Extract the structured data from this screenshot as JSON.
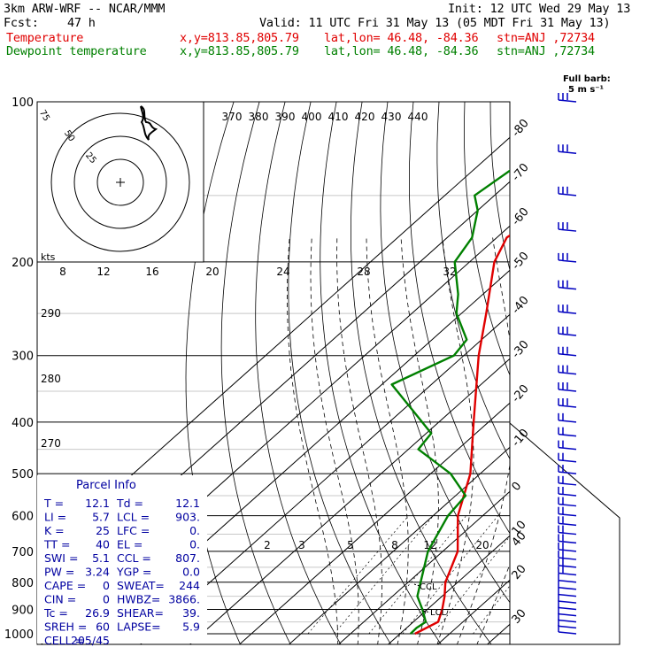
{
  "header": {
    "model": "3km ARW-WRF -- NCAR/MMM",
    "init": "Init: 12 UTC Wed 29 May 13",
    "fcst_label": "Fcst:",
    "fcst_value": "47 h",
    "valid": "Valid: 11 UTC Fri 31 May 13 (05 MDT Fri 31 May 13)",
    "temp_label": "Temperature",
    "dew_label": "Dewpoint temperature",
    "xy": "x,y=813.85,805.79",
    "latlon": "lat,lon= 46.48, -84.36",
    "stn": "stn=ANJ ,72734"
  },
  "colors": {
    "temperature": "#e00000",
    "dewpoint": "#008000",
    "wind": "#0000c0",
    "isotherm": "#000000"
  },
  "parcel": {
    "title": "Parcel Info",
    "rows": [
      [
        "T  =",
        "12.1",
        "Td =",
        "12.1"
      ],
      [
        "LI =",
        "5.7",
        "LCL =",
        "903."
      ],
      [
        "K  =",
        "25",
        "LFC =",
        "0."
      ],
      [
        "TT =",
        "40",
        "EL =",
        "0."
      ],
      [
        "SWI =",
        "5.1",
        "CCL =",
        "807."
      ],
      [
        "PW =",
        "3.24",
        "YGP =",
        "0.0"
      ],
      [
        "CAPE =",
        "0",
        "SWEAT=",
        "244"
      ],
      [
        "CIN =",
        "0",
        "HWBZ=",
        "3866."
      ],
      [
        "Tc =",
        "26.9",
        "SHEAR=",
        "39."
      ],
      [
        "SREH =",
        "60",
        "LAPSE=",
        "5.9"
      ],
      [
        "CELL =",
        "205/45",
        "",
        ""
      ]
    ]
  },
  "barb_label": {
    "line1": "Full barb:",
    "line2": "5 m s⁻¹"
  },
  "hodograph_label": "kts",
  "hodograph_rings": [
    "75",
    "50",
    "25"
  ],
  "level_markers": [
    "CCL",
    "LCL"
  ],
  "chart_data": {
    "type": "skew-t",
    "pressure_ticks": [
      "100",
      "200",
      "300",
      "400",
      "500",
      "600",
      "700",
      "800",
      "900",
      "1000"
    ],
    "isotherm_labels": [
      "-80",
      "-70",
      "-60",
      "-50",
      "-40",
      "-30",
      "-20",
      "-10",
      "0",
      "10",
      "20",
      "30",
      "40"
    ],
    "theta_labels": [
      "370",
      "380",
      "390",
      "400",
      "410",
      "420",
      "430",
      "440"
    ],
    "theta_labels_left": [
      "290",
      "280",
      "270"
    ],
    "mixing_ratio_labels": [
      "2",
      "3",
      "5",
      "8",
      "12",
      "20"
    ],
    "hodo_speed_labels": [
      "8",
      "12",
      "16",
      "20",
      "24",
      "28",
      "32"
    ],
    "series": [
      {
        "name": "Temperature",
        "points": [
          [
            1000,
            13
          ],
          [
            950,
            15
          ],
          [
            900,
            13
          ],
          [
            850,
            10.5
          ],
          [
            800,
            7.5
          ],
          [
            700,
            3
          ],
          [
            600,
            -5
          ],
          [
            500,
            -12
          ],
          [
            400,
            -23
          ],
          [
            300,
            -37
          ],
          [
            250,
            -45
          ],
          [
            200,
            -55
          ],
          [
            180,
            -58
          ],
          [
            150,
            -55
          ],
          [
            120,
            -52
          ],
          [
            100,
            -50
          ]
        ]
      },
      {
        "name": "Dewpoint temperature",
        "points": [
          [
            1000,
            12.1
          ],
          [
            975,
            12
          ],
          [
            950,
            12.5
          ],
          [
            900,
            9
          ],
          [
            850,
            5
          ],
          [
            800,
            2.5
          ],
          [
            700,
            -3
          ],
          [
            600,
            -7
          ],
          [
            550,
            -8
          ],
          [
            500,
            -16
          ],
          [
            450,
            -28
          ],
          [
            420,
            -29
          ],
          [
            380,
            -38
          ],
          [
            340,
            -48
          ],
          [
            300,
            -42
          ],
          [
            280,
            -43
          ],
          [
            250,
            -51
          ],
          [
            230,
            -55
          ],
          [
            200,
            -63
          ],
          [
            180,
            -65
          ],
          [
            160,
            -70
          ],
          [
            150,
            -74
          ],
          [
            130,
            -72
          ],
          [
            120,
            -68
          ],
          [
            100,
            -67
          ]
        ]
      }
    ]
  }
}
